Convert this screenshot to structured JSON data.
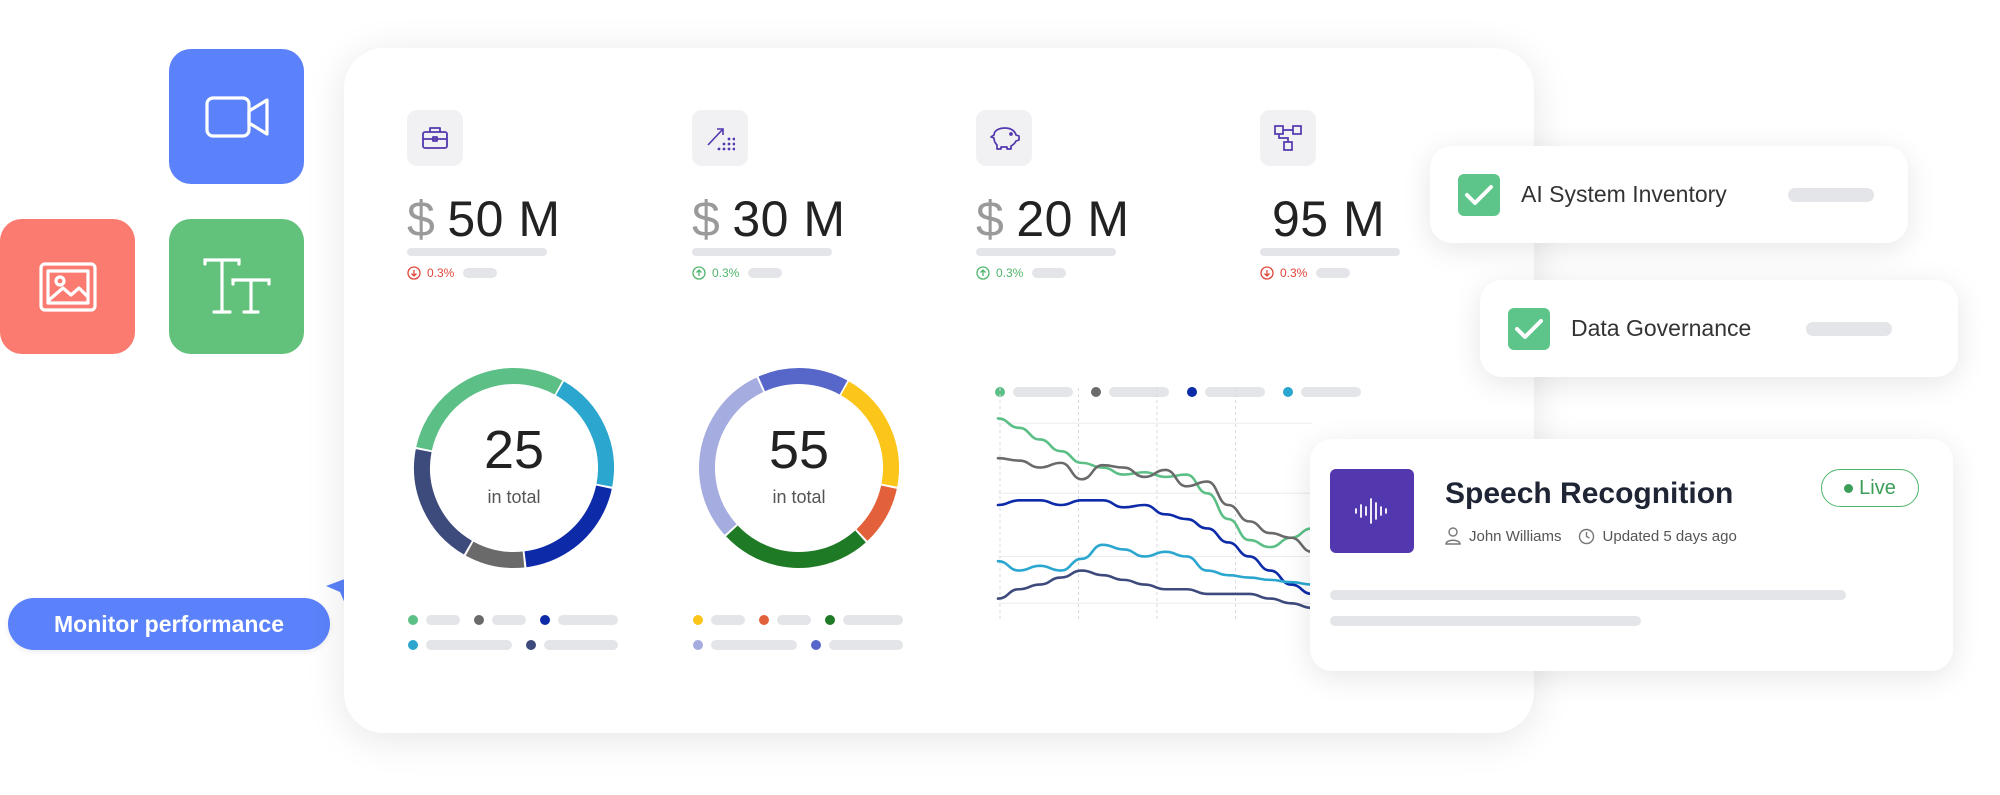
{
  "tiles": [
    {
      "name": "video-camera-icon",
      "color": "#5b82fa"
    },
    {
      "name": "image-icon",
      "color": "#fb7b70"
    },
    {
      "name": "text-format-icon",
      "color": "#62c27b"
    }
  ],
  "monitor_button": {
    "label": "Monitor performance",
    "color": "#5b82fa"
  },
  "dashboard": {
    "kpis": [
      {
        "icon": "briefcase-icon",
        "prefix": "$",
        "value": "50 M",
        "delta": "0.3%",
        "direction": "down"
      },
      {
        "icon": "growth-chart-icon",
        "prefix": "$",
        "value": "30 M",
        "delta": "0.3%",
        "direction": "up"
      },
      {
        "icon": "piggy-bank-icon",
        "prefix": "$",
        "value": "20 M",
        "delta": "0.3%",
        "direction": "up"
      },
      {
        "icon": "network-nodes-icon",
        "prefix": "",
        "value": "95 M",
        "delta": "0.3%",
        "direction": "down"
      }
    ],
    "donuts": [
      {
        "total": "25",
        "caption": "in total",
        "segments": [
          {
            "color": "#2aa6cf",
            "fraction": 0.2
          },
          {
            "color": "#0d2aa8",
            "fraction": 0.2
          },
          {
            "color": "#6a6a6a",
            "fraction": 0.1
          },
          {
            "color": "#3d4a7c",
            "fraction": 0.2
          },
          {
            "color": "#5bbf86",
            "fraction": 0.3
          }
        ],
        "legend_colors": [
          "#5bbf86",
          "#6a6a6a",
          "#0d2aa8",
          "#2aa6cf",
          "#3d4a7c"
        ]
      },
      {
        "total": "55",
        "caption": "in total",
        "segments": [
          {
            "color": "#fcc51a",
            "fraction": 0.2
          },
          {
            "color": "#e2603a",
            "fraction": 0.1
          },
          {
            "color": "#1f7a25",
            "fraction": 0.25
          },
          {
            "color": "#a5acdf",
            "fraction": 0.3
          },
          {
            "color": "#5766c9",
            "fraction": 0.15
          }
        ],
        "legend_colors": [
          "#fcc51a",
          "#e2603a",
          "#1f7a25",
          "#a5acdf",
          "#5766c9"
        ]
      }
    ],
    "line_chart_legend_colors": [
      "#5bbf86",
      "#6a6a6a",
      "#0d2aa8",
      "#2aa6cf"
    ]
  },
  "chart_data": {
    "type": "line",
    "title": "",
    "xlabel": "",
    "ylabel": "",
    "grid": true,
    "legend_position": "top",
    "x": [
      0,
      1,
      2,
      3,
      4,
      5,
      6,
      7,
      8,
      9,
      10,
      11,
      12,
      13,
      14,
      15
    ],
    "series": [
      {
        "color": "#5bbf86",
        "values": [
          87,
          83,
          78,
          73,
          68,
          66,
          63,
          64,
          62,
          63,
          55,
          44,
          35,
          32,
          36,
          40
        ]
      },
      {
        "color": "#6a6a6a",
        "values": [
          70,
          69,
          66,
          68,
          61,
          67,
          66,
          62,
          65,
          58,
          60,
          50,
          43,
          38,
          36,
          30
        ]
      },
      {
        "color": "#0d2aa8",
        "values": [
          50,
          52,
          52,
          50,
          52,
          52,
          49,
          50,
          46,
          44,
          40,
          34,
          28,
          22,
          16,
          12
        ]
      },
      {
        "color": "#2aa6cf",
        "values": [
          26,
          22,
          24,
          22,
          27,
          33,
          31,
          28,
          30,
          28,
          22,
          20,
          19,
          18,
          17,
          16
        ]
      },
      {
        "color": "#3d4a7c",
        "values": [
          10,
          14,
          16,
          19,
          22,
          20,
          18,
          16,
          14,
          14,
          12,
          12,
          12,
          10,
          8,
          6
        ]
      }
    ],
    "ylim": [
      0,
      100
    ]
  },
  "checklist": [
    {
      "label": "AI System Inventory"
    },
    {
      "label": "Data Governance"
    }
  ],
  "speech_card": {
    "title": "Speech Recognition",
    "author": "John Williams",
    "updated": "Updated 5 days ago",
    "status": "Live",
    "icon": "audio-waveform-icon"
  }
}
